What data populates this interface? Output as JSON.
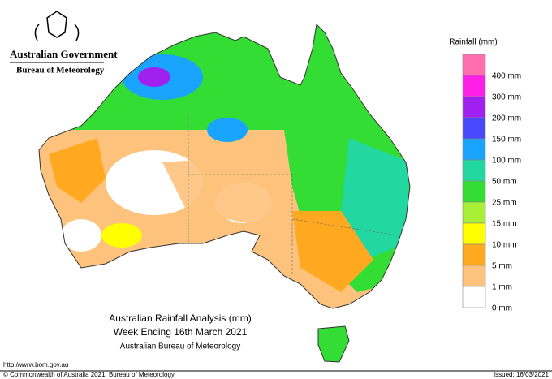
{
  "header": {
    "government": "Australian Government",
    "agency": "Bureau of Meteorology"
  },
  "legend": {
    "title": "Rainfall (mm)",
    "items": [
      {
        "label": "400 mm",
        "color": "#ff6fb0"
      },
      {
        "label": "300 mm",
        "color": "#ff20e8"
      },
      {
        "label": "200 mm",
        "color": "#a020f0"
      },
      {
        "label": "150 mm",
        "color": "#4848ff"
      },
      {
        "label": "100 mm",
        "color": "#18a4ff"
      },
      {
        "label": "50 mm",
        "color": "#22d8a0"
      },
      {
        "label": "25 mm",
        "color": "#33dd33"
      },
      {
        "label": "15 mm",
        "color": "#a8f038"
      },
      {
        "label": "10 mm",
        "color": "#ffff00"
      },
      {
        "label": "5 mm",
        "color": "#ffa820"
      },
      {
        "label": "1 mm",
        "color": "#fdc27c"
      },
      {
        "label": "0 mm",
        "color": "#ffffff"
      }
    ]
  },
  "map": {
    "title": "Australian Rainfall Analysis (mm)",
    "subtitle": "Week Ending 16th March 2021",
    "source": "Australian Bureau of Meteorology"
  },
  "footer": {
    "url": "http://www.bom.gov.au",
    "copyright": "© Commonwealth of Australia 2021, Bureau of Meteorology",
    "issued": "Issued: 16/03/2021"
  }
}
